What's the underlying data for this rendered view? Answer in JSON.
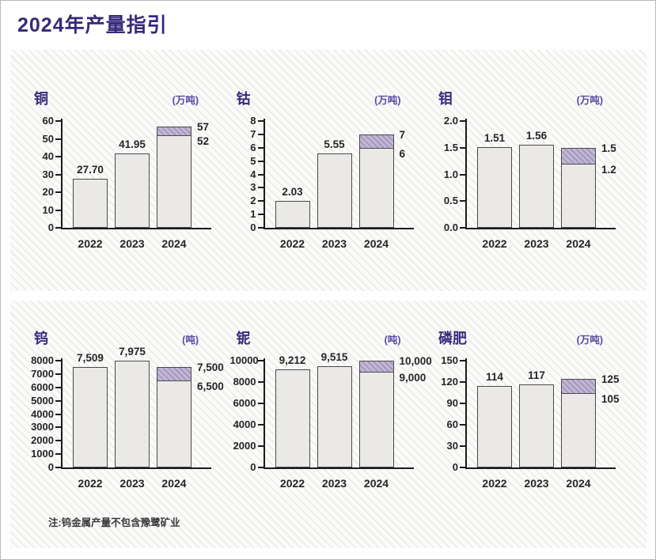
{
  "page": {
    "title": "2024年产量指引",
    "note": "注:钨金属产量不包含豫鹭矿业"
  },
  "colors": {
    "title_purple": "#38297b",
    "unit_purple": "#5a4aa3",
    "bar_fill": "#eae9e7",
    "bar_border": "#4a4a4a",
    "range_band_fill": "#c2b8d4",
    "axis_black": "#1b1b1b",
    "label_text": "#252525",
    "panel_background": "#fbfbfa",
    "panel_stripe": "#ececeb"
  },
  "chart_data": [
    {
      "type": "bar",
      "title": "铜",
      "unit": "(万吨)",
      "categories": [
        "2022",
        "2023",
        "2024"
      ],
      "ylim": [
        0,
        60
      ],
      "yticks": [
        "0",
        "10",
        "20",
        "30",
        "40",
        "50",
        "60"
      ],
      "bars": [
        {
          "category": "2022",
          "value": 27.7,
          "label": "27.70"
        },
        {
          "category": "2023",
          "value": 41.95,
          "label": "41.95"
        },
        {
          "category": "2024",
          "low": 52,
          "high": 57,
          "low_label": "52",
          "high_label": "57"
        }
      ]
    },
    {
      "type": "bar",
      "title": "钴",
      "unit": "(万吨)",
      "categories": [
        "2022",
        "2023",
        "2024"
      ],
      "ylim": [
        0,
        8
      ],
      "yticks": [
        "0",
        "1",
        "2",
        "3",
        "4",
        "5",
        "6",
        "7",
        "8"
      ],
      "bars": [
        {
          "category": "2022",
          "value": 2.03,
          "label": "2.03"
        },
        {
          "category": "2023",
          "value": 5.55,
          "label": "5.55"
        },
        {
          "category": "2024",
          "low": 6,
          "high": 7,
          "low_label": "6",
          "high_label": "7"
        }
      ]
    },
    {
      "type": "bar",
      "title": "钼",
      "unit": "(万吨)",
      "categories": [
        "2022",
        "2023",
        "2024"
      ],
      "ylim": [
        0,
        2.0
      ],
      "yticks": [
        "0.0",
        "0.5",
        "1.0",
        "1.5",
        "2.0"
      ],
      "bars": [
        {
          "category": "2022",
          "value": 1.51,
          "label": "1.51"
        },
        {
          "category": "2023",
          "value": 1.56,
          "label": "1.56"
        },
        {
          "category": "2024",
          "low": 1.2,
          "high": 1.5,
          "low_label": "1.2",
          "high_label": "1.5"
        }
      ]
    },
    {
      "type": "bar",
      "title": "钨",
      "unit": "(吨)",
      "categories": [
        "2022",
        "2023",
        "2024"
      ],
      "ylim": [
        0,
        8000
      ],
      "yticks": [
        "0",
        "1000",
        "2000",
        "3000",
        "4000",
        "5000",
        "6000",
        "7000",
        "8000"
      ],
      "bars": [
        {
          "category": "2022",
          "value": 7509,
          "label": "7,509"
        },
        {
          "category": "2023",
          "value": 7975,
          "label": "7,975"
        },
        {
          "category": "2024",
          "low": 6500,
          "high": 7500,
          "low_label": "6,500",
          "high_label": "7,500"
        }
      ]
    },
    {
      "type": "bar",
      "title": "铌",
      "unit": "(吨)",
      "categories": [
        "2022",
        "2023",
        "2024"
      ],
      "ylim": [
        0,
        10000
      ],
      "yticks": [
        "0",
        "2000",
        "4000",
        "6000",
        "8000",
        "10000"
      ],
      "bars": [
        {
          "category": "2022",
          "value": 9212,
          "label": "9,212"
        },
        {
          "category": "2023",
          "value": 9515,
          "label": "9,515"
        },
        {
          "category": "2024",
          "low": 9000,
          "high": 10000,
          "low_label": "9,000",
          "high_label": "10,000"
        }
      ]
    },
    {
      "type": "bar",
      "title": "磷肥",
      "unit": "(万吨)",
      "categories": [
        "2022",
        "2023",
        "2024"
      ],
      "ylim": [
        0,
        150
      ],
      "yticks": [
        "0",
        "30",
        "60",
        "90",
        "120",
        "150"
      ],
      "bars": [
        {
          "category": "2022",
          "value": 114,
          "label": "114"
        },
        {
          "category": "2023",
          "value": 117,
          "label": "117"
        },
        {
          "category": "2024",
          "low": 105,
          "high": 125,
          "low_label": "105",
          "high_label": "125"
        }
      ]
    }
  ]
}
